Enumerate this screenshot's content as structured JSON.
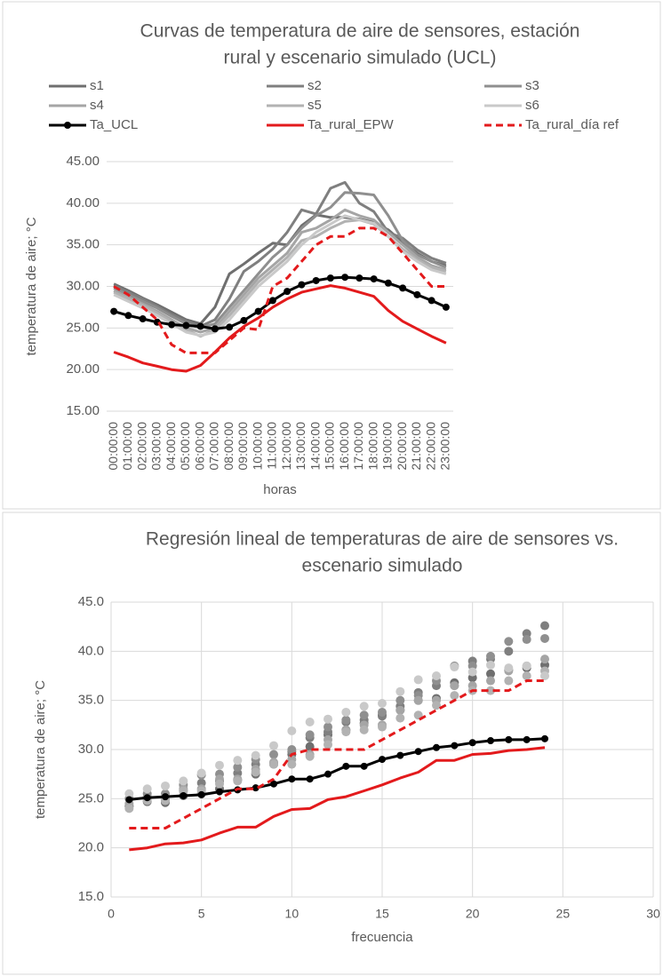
{
  "chart_data": [
    {
      "type": "line",
      "title": [
        "Curvas de temperatura de aire de sensores, estación",
        "rural y escenario simulado (UCL)"
      ],
      "xlabel": "horas",
      "ylabel": "temperatura de aire; °C",
      "categories": [
        "00:00:00",
        "01:00:00",
        "02:00:00",
        "03:00:00",
        "04:00:00",
        "05:00:00",
        "06:00:00",
        "07:00:00",
        "08:00:00",
        "09:00:00",
        "10:00:00",
        "11:00:00",
        "12:00:00",
        "13:00:00",
        "14:00:00",
        "15:00:00",
        "16:00:00",
        "17:00:00",
        "18:00:00",
        "19:00:00",
        "20:00:00",
        "21:00:00",
        "22:00:00",
        "23:00:00"
      ],
      "ylim": [
        15,
        45
      ],
      "yticks": [
        {
          "value": 15,
          "label": "15.00"
        },
        {
          "value": 20,
          "label": "20.00"
        },
        {
          "value": 25,
          "label": "25.00"
        },
        {
          "value": 30,
          "label": "30.00"
        },
        {
          "value": 35,
          "label": "35.00"
        },
        {
          "value": 40,
          "label": "40.00"
        },
        {
          "value": 45,
          "label": "45.00"
        }
      ],
      "grid": "y",
      "legend": "top",
      "series": [
        {
          "name": "s1",
          "color": "#6f6f6f",
          "line": true,
          "marker": false,
          "dash": false,
          "values": [
            30.3,
            29.5,
            28.6,
            27.8,
            26.9,
            26.0,
            25.5,
            27.5,
            31.5,
            32.7,
            34.0,
            35.2,
            35.0,
            37.3,
            38.6,
            38.3,
            38.3,
            38.1,
            37.7,
            36.8,
            35.3,
            34.0,
            33.0,
            32.5
          ]
        },
        {
          "name": "s2",
          "color": "#7f7f7f",
          "line": true,
          "marker": false,
          "dash": false,
          "values": [
            30.1,
            29.3,
            28.5,
            27.6,
            26.6,
            25.8,
            25.2,
            26.0,
            28.5,
            31.8,
            33.0,
            34.5,
            36.5,
            39.2,
            38.7,
            41.8,
            42.5,
            40.0,
            39.0,
            36.5,
            35.8,
            34.4,
            33.4,
            32.8
          ]
        },
        {
          "name": "s3",
          "color": "#8f8f8f",
          "line": true,
          "marker": false,
          "dash": false,
          "values": [
            29.8,
            29.0,
            28.2,
            27.4,
            26.4,
            25.5,
            25.0,
            25.5,
            27.5,
            29.5,
            31.5,
            33.5,
            35.0,
            37.0,
            38.5,
            39.5,
            41.3,
            41.2,
            41.0,
            38.5,
            35.5,
            33.8,
            33.0,
            32.3
          ]
        },
        {
          "name": "s4",
          "color": "#a5a5a5",
          "line": true,
          "marker": false,
          "dash": false,
          "values": [
            29.5,
            28.7,
            27.9,
            27.0,
            26.0,
            25.0,
            24.5,
            25.0,
            27.0,
            29.0,
            31.0,
            32.5,
            34.0,
            36.5,
            37.0,
            38.0,
            39.2,
            38.5,
            38.0,
            36.5,
            35.0,
            33.5,
            32.5,
            32.0
          ]
        },
        {
          "name": "s5",
          "color": "#b2b2b2",
          "line": true,
          "marker": false,
          "dash": false,
          "values": [
            29.3,
            28.5,
            27.7,
            26.8,
            25.8,
            24.8,
            24.0,
            24.8,
            26.5,
            28.5,
            30.5,
            32.0,
            33.5,
            35.5,
            36.0,
            37.0,
            37.8,
            38.0,
            37.5,
            36.0,
            34.5,
            33.2,
            32.3,
            31.8
          ]
        },
        {
          "name": "s6",
          "color": "#c9c9c9",
          "line": true,
          "marker": false,
          "dash": false,
          "values": [
            29.0,
            28.2,
            27.4,
            26.5,
            25.5,
            24.5,
            24.1,
            24.5,
            26.0,
            28.0,
            30.0,
            31.5,
            33.0,
            35.0,
            36.5,
            37.5,
            38.5,
            38.0,
            37.6,
            36.0,
            34.2,
            33.0,
            32.0,
            31.5
          ]
        },
        {
          "name": "Ta_UCL",
          "color": "#000000",
          "line": true,
          "marker": true,
          "dash": false,
          "values": [
            27.0,
            26.5,
            26.1,
            25.7,
            25.4,
            25.3,
            25.2,
            24.9,
            25.1,
            25.9,
            27.0,
            28.3,
            29.4,
            30.2,
            30.7,
            31.0,
            31.1,
            31.0,
            30.9,
            30.4,
            29.8,
            29.0,
            28.3,
            27.5
          ]
        },
        {
          "name": "Ta_rural_EPW",
          "color": "#e31a1c",
          "line": true,
          "marker": false,
          "dash": false,
          "values": [
            22.1,
            21.5,
            20.8,
            20.4,
            20.0,
            19.8,
            20.5,
            22.1,
            23.8,
            25.2,
            26.2,
            27.5,
            28.5,
            29.3,
            29.7,
            30.1,
            29.8,
            29.3,
            28.8,
            27.1,
            25.8,
            24.9,
            24.0,
            23.2
          ]
        },
        {
          "name": "Ta_rural_día ref",
          "color": "#e31a1c",
          "line": true,
          "marker": false,
          "dash": true,
          "values": [
            30.0,
            29.0,
            27.5,
            26.0,
            23.0,
            22.0,
            22.0,
            22.0,
            23.5,
            25.0,
            24.8,
            30.0,
            31.0,
            33.0,
            35.0,
            36.0,
            36.0,
            37.0,
            37.0,
            36.0,
            34.0,
            32.0,
            30.0,
            30.0
          ]
        }
      ]
    },
    {
      "type": "scatter",
      "title": [
        "Regresión lineal de temperaturas de aire de sensores vs.",
        "escenario simulado"
      ],
      "xlabel": "frecuencia",
      "ylabel": "temperatura de aire; °C",
      "x": [
        1,
        2,
        3,
        4,
        5,
        6,
        7,
        8,
        9,
        10,
        11,
        12,
        13,
        14,
        15,
        16,
        17,
        18,
        19,
        20,
        21,
        22,
        23,
        24
      ],
      "xlim": [
        0,
        30
      ],
      "xticks": [
        0,
        5,
        10,
        15,
        20,
        25,
        30
      ],
      "ylim": [
        15,
        45
      ],
      "yticks": [
        {
          "value": 15,
          "label": "15.0"
        },
        {
          "value": 20,
          "label": "20.0"
        },
        {
          "value": 25,
          "label": "25.0"
        },
        {
          "value": 30,
          "label": "30.0"
        },
        {
          "value": 35,
          "label": "35.0"
        },
        {
          "value": 40,
          "label": "40.0"
        },
        {
          "value": 45,
          "label": "45.0"
        }
      ],
      "grid": "both",
      "series": [
        {
          "color": "#6f6f6f",
          "line": false,
          "marker": true,
          "dash": false,
          "values": [
            24.2,
            24.7,
            24.6,
            25.3,
            25.5,
            26.0,
            26.9,
            27.5,
            28.6,
            29.5,
            30.3,
            31.5,
            32.0,
            32.7,
            33.5,
            34.0,
            35.0,
            35.2,
            36.8,
            37.3,
            37.7,
            38.1,
            38.3,
            38.6
          ]
        },
        {
          "color": "#7f7f7f",
          "line": false,
          "marker": true,
          "dash": false,
          "values": [
            24.3,
            25.2,
            25.0,
            25.8,
            26.6,
            26.8,
            27.6,
            28.5,
            28.5,
            29.8,
            31.2,
            31.8,
            32.8,
            33.0,
            33.4,
            34.4,
            35.8,
            36.5,
            36.5,
            39.0,
            39.2,
            40.0,
            41.8,
            42.6
          ]
        },
        {
          "color": "#8f8f8f",
          "line": false,
          "marker": true,
          "dash": false,
          "values": [
            25.0,
            25.5,
            25.5,
            26.4,
            27.4,
            27.5,
            28.2,
            29.0,
            29.5,
            30.0,
            31.5,
            32.3,
            33.0,
            33.5,
            33.8,
            35.0,
            35.5,
            37.0,
            38.5,
            38.5,
            39.5,
            41.0,
            41.2,
            41.3
          ]
        },
        {
          "color": "#a5a5a5",
          "line": false,
          "marker": true,
          "dash": false,
          "values": [
            24.5,
            25.0,
            25.0,
            26.0,
            26.0,
            27.0,
            27.0,
            28.0,
            28.7,
            29.0,
            29.5,
            31.0,
            32.0,
            32.5,
            32.5,
            34.0,
            35.0,
            35.0,
            36.5,
            36.5,
            37.0,
            38.0,
            38.5,
            39.2
          ]
        },
        {
          "color": "#b2b2b2",
          "line": false,
          "marker": true,
          "dash": false,
          "values": [
            24.0,
            24.8,
            24.8,
            25.8,
            25.8,
            26.5,
            26.8,
            27.7,
            28.5,
            28.5,
            29.3,
            30.5,
            31.8,
            32.0,
            32.3,
            33.2,
            33.5,
            34.5,
            35.5,
            36.0,
            36.0,
            37.0,
            37.5,
            38.0
          ]
        },
        {
          "color": "#c9c9c9",
          "line": false,
          "marker": true,
          "dash": false,
          "values": [
            25.5,
            26.0,
            26.3,
            26.8,
            27.6,
            28.4,
            28.9,
            29.4,
            30.4,
            31.9,
            32.8,
            33.1,
            33.8,
            34.4,
            34.7,
            35.9,
            37.1,
            37.5,
            38.4,
            37.9,
            38.6,
            38.3,
            38.5,
            37.5
          ]
        },
        {
          "color": "#000000",
          "line": true,
          "marker": true,
          "dash": false,
          "values": [
            24.9,
            25.1,
            25.2,
            25.3,
            25.4,
            25.7,
            25.9,
            26.1,
            26.5,
            27.0,
            27.0,
            27.5,
            28.3,
            28.3,
            29.0,
            29.4,
            29.8,
            30.2,
            30.4,
            30.7,
            30.9,
            31.0,
            31.0,
            31.1
          ]
        },
        {
          "color": "#e31a1c",
          "line": true,
          "marker": false,
          "dash": false,
          "values": [
            19.8,
            20.0,
            20.4,
            20.5,
            20.8,
            21.5,
            22.1,
            22.1,
            23.2,
            23.9,
            24.0,
            24.9,
            25.2,
            25.8,
            26.4,
            27.1,
            27.7,
            28.9,
            28.9,
            29.5,
            29.6,
            29.9,
            30.0,
            30.2
          ]
        },
        {
          "color": "#e31a1c",
          "line": true,
          "marker": false,
          "dash": true,
          "values": [
            22,
            22,
            22,
            23,
            24,
            25,
            26,
            26,
            27,
            29.5,
            30,
            30,
            30,
            30,
            31,
            32,
            33,
            34,
            35,
            36,
            36,
            36,
            37,
            37
          ]
        }
      ]
    }
  ]
}
